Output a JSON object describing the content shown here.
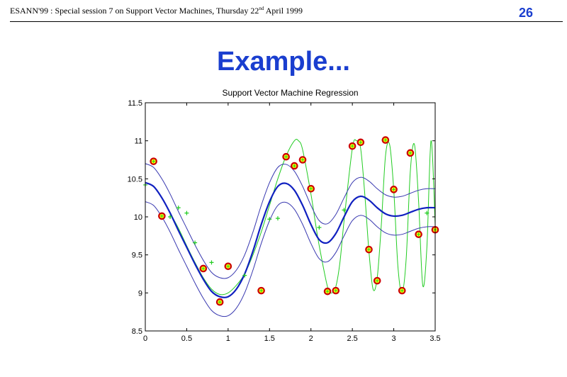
{
  "header": {
    "text_before": "ESANN'99 :  Special session 7 on Support Vector Machines, Thursday 22",
    "superscript": "nd",
    "text_after": " April 1999",
    "page_number": "26"
  },
  "slide_title": "Example...",
  "colors": {
    "accent": "#1a3ecf",
    "regression": "#1020c0",
    "band": "#3838b0",
    "true_function": "#22cc22",
    "support_vector": "#cc0000",
    "support_vector_fill": "#ffff00"
  },
  "chart_data": {
    "type": "line",
    "title": "Support Vector Machine Regression",
    "xlabel": "",
    "ylabel": "",
    "xlim": [
      0,
      3.5
    ],
    "ylim": [
      8.5,
      11.5
    ],
    "xticks": [
      0,
      0.5,
      1,
      1.5,
      2,
      2.5,
      3,
      3.5
    ],
    "xtick_labels": [
      "0",
      "0.5",
      "1",
      "1.5",
      "2",
      "2.5",
      "3",
      "3.5"
    ],
    "yticks": [
      8.5,
      9,
      9.5,
      10,
      10.5,
      11,
      11.5
    ],
    "ytick_labels": [
      "8.5",
      "9",
      "9.5",
      "10",
      "10.5",
      "11",
      "11.5"
    ],
    "grid": false,
    "series": [
      {
        "kind": "true_function",
        "x": [
          0,
          0.1,
          0.2,
          0.3,
          0.4,
          0.5,
          0.6,
          0.7,
          0.8,
          0.9,
          1.0,
          1.1,
          1.2,
          1.3,
          1.4,
          1.5,
          1.6,
          1.7,
          1.8,
          1.85,
          1.9,
          2.0,
          2.05,
          2.1,
          2.2,
          2.25,
          2.3,
          2.35,
          2.4,
          2.5,
          2.55,
          2.6,
          2.65,
          2.7,
          2.75,
          2.8,
          2.85,
          2.9,
          2.95,
          3.0,
          3.05,
          3.1,
          3.15,
          3.2,
          3.25,
          3.3,
          3.35,
          3.4,
          3.45,
          3.5
        ],
        "y": [
          10.45,
          10.4,
          10.25,
          10.05,
          9.85,
          9.62,
          9.4,
          9.2,
          9.05,
          8.98,
          9.0,
          9.1,
          9.25,
          9.5,
          9.8,
          10.15,
          10.5,
          10.8,
          11.0,
          11.0,
          10.88,
          10.3,
          9.95,
          9.62,
          9.08,
          9.0,
          9.08,
          9.4,
          9.95,
          10.9,
          11.0,
          10.9,
          10.3,
          9.55,
          9.05,
          9.2,
          9.9,
          10.8,
          10.95,
          10.35,
          9.35,
          9.0,
          9.45,
          10.6,
          10.95,
          10.2,
          9.1,
          9.6,
          11.0,
          9.9
        ]
      },
      {
        "kind": "regression",
        "x": [
          0,
          0.1,
          0.2,
          0.3,
          0.4,
          0.5,
          0.6,
          0.7,
          0.8,
          0.9,
          1.0,
          1.1,
          1.2,
          1.3,
          1.4,
          1.5,
          1.6,
          1.7,
          1.8,
          1.9,
          2.0,
          2.1,
          2.2,
          2.3,
          2.4,
          2.5,
          2.6,
          2.7,
          2.8,
          2.9,
          3.0,
          3.1,
          3.2,
          3.3,
          3.4,
          3.5
        ],
        "y": [
          10.45,
          10.4,
          10.25,
          10.05,
          9.82,
          9.6,
          9.38,
          9.18,
          9.02,
          8.95,
          8.95,
          9.05,
          9.25,
          9.55,
          9.9,
          10.2,
          10.4,
          10.44,
          10.35,
          10.15,
          9.9,
          9.7,
          9.66,
          9.78,
          10.0,
          10.2,
          10.27,
          10.22,
          10.12,
          10.04,
          10.01,
          10.02,
          10.06,
          10.1,
          10.12,
          10.12
        ]
      },
      {
        "kind": "upper_band",
        "x": [
          0,
          0.1,
          0.2,
          0.3,
          0.4,
          0.5,
          0.6,
          0.7,
          0.8,
          0.9,
          1.0,
          1.1,
          1.2,
          1.3,
          1.4,
          1.5,
          1.6,
          1.7,
          1.8,
          1.9,
          2.0,
          2.1,
          2.2,
          2.3,
          2.4,
          2.5,
          2.6,
          2.7,
          2.8,
          2.9,
          3.0,
          3.1,
          3.2,
          3.3,
          3.4,
          3.5
        ],
        "y": [
          10.7,
          10.65,
          10.5,
          10.3,
          10.07,
          9.85,
          9.63,
          9.43,
          9.27,
          9.2,
          9.2,
          9.3,
          9.5,
          9.8,
          10.15,
          10.45,
          10.65,
          10.69,
          10.6,
          10.4,
          10.15,
          9.95,
          9.91,
          10.03,
          10.25,
          10.45,
          10.52,
          10.47,
          10.37,
          10.29,
          10.26,
          10.27,
          10.31,
          10.35,
          10.37,
          10.37
        ]
      },
      {
        "kind": "lower_band",
        "x": [
          0,
          0.1,
          0.2,
          0.3,
          0.4,
          0.5,
          0.6,
          0.7,
          0.8,
          0.9,
          1.0,
          1.1,
          1.2,
          1.3,
          1.4,
          1.5,
          1.6,
          1.7,
          1.8,
          1.9,
          2.0,
          2.1,
          2.2,
          2.3,
          2.4,
          2.5,
          2.6,
          2.7,
          2.8,
          2.9,
          3.0,
          3.1,
          3.2,
          3.3,
          3.4,
          3.5
        ],
        "y": [
          10.2,
          10.15,
          10.0,
          9.8,
          9.57,
          9.35,
          9.13,
          8.93,
          8.77,
          8.7,
          8.7,
          8.8,
          9.0,
          9.3,
          9.65,
          9.95,
          10.15,
          10.19,
          10.1,
          9.9,
          9.65,
          9.45,
          9.41,
          9.53,
          9.75,
          9.95,
          10.02,
          9.97,
          9.87,
          9.79,
          9.76,
          9.77,
          9.81,
          9.85,
          9.87,
          9.87
        ]
      }
    ],
    "training_points": {
      "x": [
        0.0,
        0.3,
        0.4,
        0.5,
        0.6,
        0.8,
        1.2,
        1.5,
        1.6,
        2.1,
        2.4,
        3.4
      ],
      "y": [
        10.42,
        10.0,
        10.12,
        10.05,
        9.66,
        9.4,
        9.23,
        9.97,
        9.98,
        9.86,
        10.09,
        10.05
      ]
    },
    "support_vectors": {
      "x": [
        0.1,
        0.2,
        0.7,
        0.9,
        1.0,
        1.4,
        1.7,
        1.8,
        1.9,
        2.0,
        2.2,
        2.3,
        2.5,
        2.6,
        2.7,
        2.8,
        2.9,
        3.0,
        3.1,
        3.2,
        3.3,
        3.5
      ],
      "y": [
        10.73,
        10.01,
        9.32,
        8.88,
        9.35,
        9.03,
        10.79,
        10.67,
        10.75,
        10.37,
        9.02,
        9.03,
        10.93,
        10.98,
        9.57,
        9.16,
        11.01,
        10.36,
        9.03,
        10.84,
        9.77,
        9.83
      ]
    }
  }
}
